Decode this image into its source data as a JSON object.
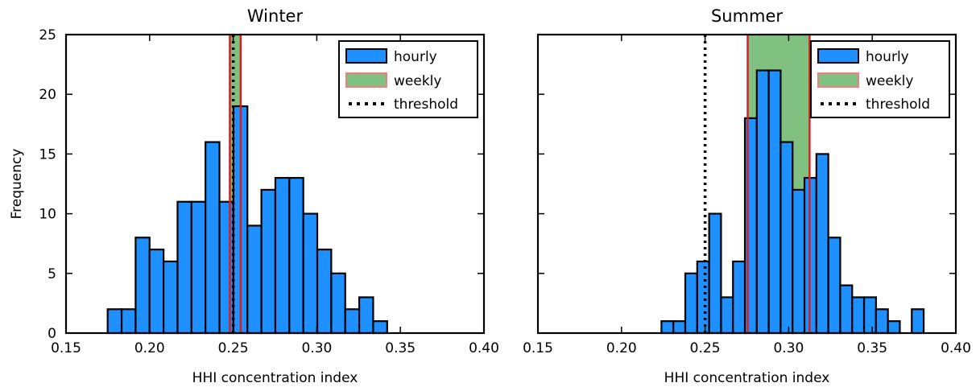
{
  "chart_data": [
    {
      "type": "histogram",
      "title": "Winter",
      "xlabel": "HHI concentration index",
      "ylabel": "Frequency",
      "xlim": [
        0.15,
        0.4
      ],
      "ylim": [
        0,
        25
      ],
      "xticks": [
        "0.15",
        "0.20",
        "0.25",
        "0.30",
        "0.35",
        "0.40"
      ],
      "yticks": [
        "0",
        "5",
        "10",
        "15",
        "20",
        "25"
      ],
      "bins": {
        "start": 0.1749,
        "width": 0.00836,
        "counts": [
          2,
          2,
          8,
          7,
          6,
          11,
          11,
          16,
          11,
          19,
          9,
          12,
          13,
          13,
          10,
          7,
          5,
          2,
          3,
          1
        ]
      },
      "weekly_band": [
        0.248,
        0.2545
      ],
      "threshold": 0.25,
      "legend": [
        {
          "label": "hourly",
          "kind": "bar",
          "color": "#1e90ff"
        },
        {
          "label": "weekly",
          "kind": "band",
          "color": "#80c080",
          "edge": "#f08080"
        },
        {
          "label": "threshold",
          "kind": "dotted",
          "color": "#000000"
        }
      ],
      "legend_loc": "top-right"
    },
    {
      "type": "histogram",
      "title": "Summer",
      "xlabel": "HHI concentration index",
      "ylabel": "",
      "xlim": [
        0.15,
        0.4
      ],
      "ylim": [
        0,
        25
      ],
      "xticks": [
        "0.15",
        "0.20",
        "0.25",
        "0.30",
        "0.35",
        "0.40"
      ],
      "yticks": [],
      "bins": {
        "start": 0.2239,
        "width": 0.00713,
        "counts": [
          1,
          1,
          5,
          6,
          10,
          3,
          6,
          18,
          22,
          22,
          16,
          12,
          13,
          15,
          8,
          4,
          3,
          3,
          2,
          1,
          0,
          2
        ]
      },
      "weekly_band": [
        0.2755,
        0.3125
      ],
      "threshold": 0.25,
      "legend": [
        {
          "label": "hourly",
          "kind": "bar",
          "color": "#1e90ff"
        },
        {
          "label": "weekly",
          "kind": "band",
          "color": "#80c080",
          "edge": "#f08080"
        },
        {
          "label": "threshold",
          "kind": "dotted",
          "color": "#000000"
        }
      ],
      "legend_loc": "top-right"
    }
  ],
  "colors": {
    "bar": "#1e90ff",
    "band_fill": "#80c080",
    "band_edge": "#d62020",
    "legend_band_edge": "#f08080",
    "threshold": "#000000"
  }
}
